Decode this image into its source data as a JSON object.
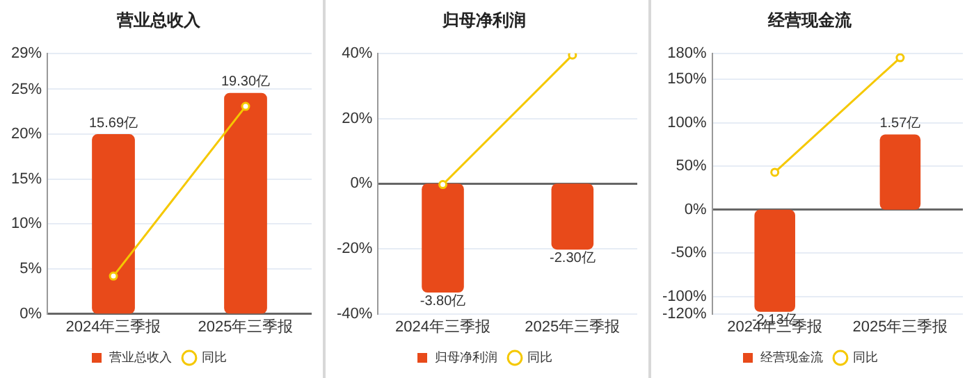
{
  "chart_data": [
    {
      "type": "bar",
      "title": "营业总收入",
      "categories": [
        "2024年三季报",
        "2025年三季报"
      ],
      "series": [
        {
          "name": "营业总收入",
          "axis": "y2",
          "color": "#e84a1a",
          "values": [
            15.69,
            19.3
          ],
          "value_labels": [
            "15.69亿",
            "19.30亿"
          ]
        },
        {
          "name": "同比",
          "type": "line",
          "color": "#f5c800",
          "marker": "circle",
          "values": [
            4.2,
            23.1
          ]
        }
      ],
      "ylim": [
        0,
        29
      ],
      "yticks": [
        {
          "value": 0,
          "label": "0%"
        },
        {
          "value": 5,
          "label": "5%"
        },
        {
          "value": 10,
          "label": "10%"
        },
        {
          "value": 15,
          "label": "15%"
        },
        {
          "value": 20,
          "label": "20%"
        },
        {
          "value": 25,
          "label": "25%"
        },
        {
          "value": 29,
          "label": "29%"
        }
      ],
      "y2lim": [
        0,
        22.75
      ],
      "grid": "y",
      "legend": "bottom"
    },
    {
      "type": "bar",
      "title": "归母净利润",
      "categories": [
        "2024年三季报",
        "2025年三季报"
      ],
      "series": [
        {
          "name": "归母净利润",
          "axis": "y2",
          "color": "#e84a1a",
          "values": [
            -3.8,
            -2.3
          ],
          "value_labels": [
            "-3.80亿",
            "-2.30亿"
          ]
        },
        {
          "name": "同比",
          "type": "line",
          "color": "#f5c800",
          "marker": "circle",
          "values": [
            -0.3,
            39.5
          ]
        }
      ],
      "ylim": [
        -40,
        40
      ],
      "yticks": [
        {
          "value": -40,
          "label": "-40%"
        },
        {
          "value": -20,
          "label": "-20%"
        },
        {
          "value": 0,
          "label": "0%"
        },
        {
          "value": 20,
          "label": "20%"
        },
        {
          "value": 40,
          "label": "40%"
        }
      ],
      "y2lim": [
        -4.54,
        4.54
      ],
      "grid": "y",
      "legend": "bottom"
    },
    {
      "type": "bar",
      "title": "经营现金流",
      "categories": [
        "2024年三季报",
        "2025年三季报"
      ],
      "series": [
        {
          "name": "经营现金流",
          "axis": "y2",
          "color": "#e84a1a",
          "values": [
            -2.13,
            1.57
          ],
          "value_labels": [
            "-2.13亿",
            "1.57亿"
          ]
        },
        {
          "name": "同比",
          "type": "line",
          "color": "#f5c800",
          "marker": "circle",
          "values": [
            43,
            175
          ]
        }
      ],
      "ylim": [
        -120,
        180
      ],
      "yticks": [
        {
          "value": -120,
          "label": "-120%"
        },
        {
          "value": -100,
          "label": "-100%"
        },
        {
          "value": -50,
          "label": "-50%"
        },
        {
          "value": 0,
          "label": "0%"
        },
        {
          "value": 50,
          "label": "50%"
        },
        {
          "value": 100,
          "label": "100%"
        },
        {
          "value": 150,
          "label": "150%"
        },
        {
          "value": 180,
          "label": "180%"
        }
      ],
      "y2lim": [
        -2.17,
        3.26
      ],
      "grid": "y",
      "legend": "bottom"
    }
  ]
}
